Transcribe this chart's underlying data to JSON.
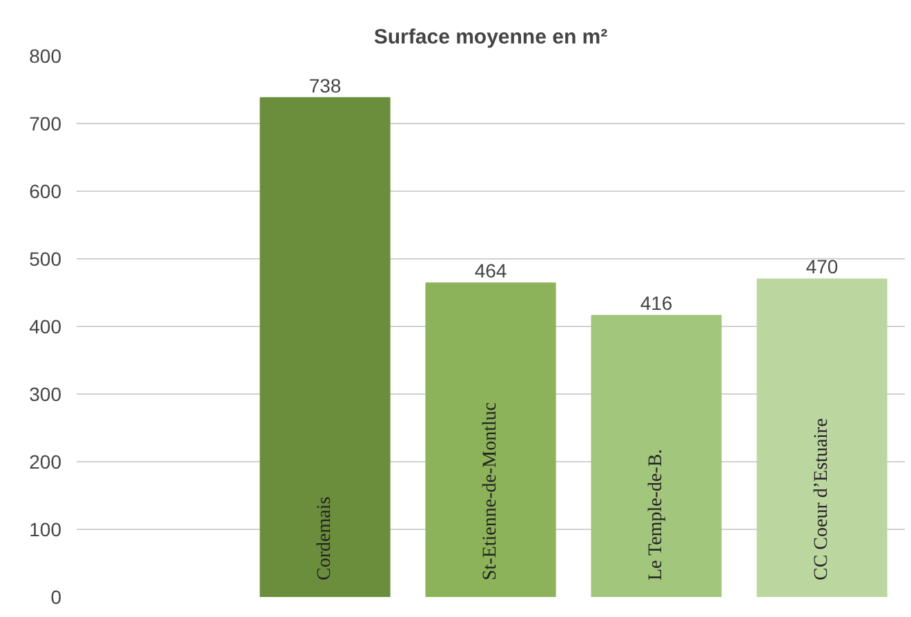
{
  "chart_data": {
    "type": "bar",
    "title": "Surface moyenne en m²",
    "categories": [
      null,
      "Cordemais",
      "St-Etienne-de-Montluc",
      "Le Temple-de-B.",
      "CC Coeur d’Estuaire"
    ],
    "values": [
      null,
      738,
      464,
      416,
      470
    ],
    "colors": [
      "#6b8e3d",
      "#6b8e3d",
      "#8db35a",
      "#a3c67d",
      "#bcd6a0"
    ],
    "ylim": [
      0,
      800
    ],
    "yticks": [
      0,
      100,
      200,
      300,
      400,
      500,
      600,
      700,
      800
    ],
    "grid": "y",
    "data_labels": true
  }
}
